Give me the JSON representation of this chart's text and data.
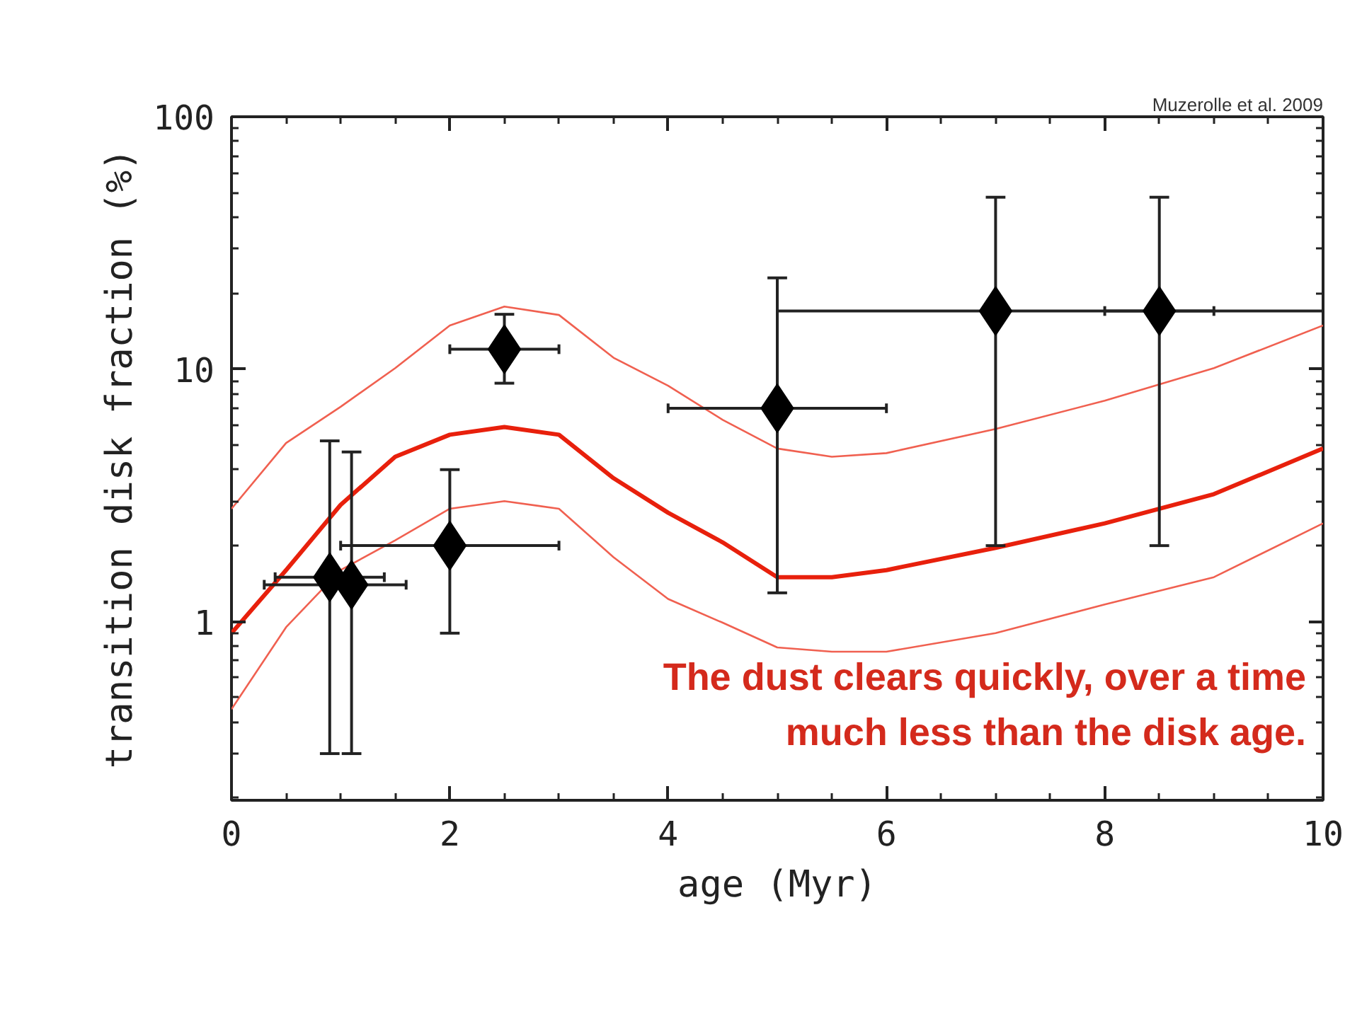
{
  "chart_data": {
    "type": "line",
    "xlabel": "age (Myr)",
    "ylabel": "transition disk fraction (%)",
    "log": "y",
    "xlim": [
      0,
      10
    ],
    "ylim": [
      0.196,
      100
    ],
    "xticks": [
      0,
      2,
      4,
      6,
      8,
      10
    ],
    "yticks": [
      1,
      10,
      100
    ],
    "grid": false,
    "annotations": [
      "Muzerolle et al. 2009",
      "The dust clears quickly, over a time\nmuch less than the disk age."
    ],
    "series": [
      {
        "color": "#e8200c",
        "x": [
          0,
          0.5,
          1,
          1.5,
          2,
          2.5,
          3,
          3.5,
          4,
          4.5,
          5,
          5.5,
          6,
          7,
          8,
          9,
          10
        ],
        "values": [
          0.9,
          1.6,
          2.9,
          4.5,
          5.5,
          5.9,
          5.5,
          3.7,
          2.7,
          2.06,
          1.5,
          1.5,
          1.6,
          1.96,
          2.45,
          3.2,
          4.85
        ]
      },
      {
        "color": "#f06050",
        "x": [
          0,
          0.5,
          1,
          1.5,
          2,
          2.5,
          3,
          3.5,
          4,
          4.5,
          5,
          5.5,
          6,
          7,
          8,
          9,
          10
        ],
        "values": [
          2.8,
          5.1,
          7.1,
          10.1,
          14.9,
          17.7,
          16.4,
          11.1,
          8.6,
          6.3,
          4.85,
          4.5,
          4.65,
          5.8,
          7.5,
          10.1,
          14.9
        ]
      },
      {
        "color": "#f06050",
        "x": [
          0,
          0.5,
          1,
          1.5,
          2,
          2.5,
          3,
          3.5,
          4,
          4.5,
          5,
          5.5,
          6,
          7,
          8,
          9,
          10
        ],
        "values": [
          0.45,
          0.95,
          1.6,
          2.1,
          2.8,
          3.0,
          2.8,
          1.8,
          1.23,
          0.99,
          0.79,
          0.76,
          0.76,
          0.9,
          1.17,
          1.5,
          2.45
        ]
      },
      {
        "type": "scatter",
        "color": "#000000",
        "marker": "diamond",
        "x": [
          0.9,
          1.1,
          2,
          2.5,
          5,
          7,
          8.5
        ],
        "values": [
          1.5,
          1.4,
          2.0,
          12,
          7,
          17,
          17
        ],
        "errors": [
          [
            0.3,
            5.2
          ],
          [
            0.3,
            4.7
          ],
          [
            0.9,
            4.0
          ],
          [
            8.8,
            16.5
          ],
          [
            1.3,
            23
          ],
          [
            2,
            48
          ],
          [
            2,
            48
          ]
        ],
        "xerrors": [
          [
            0.4,
            1.4
          ],
          [
            0.3,
            1.6
          ],
          [
            1.0,
            3.0
          ],
          [
            2.0,
            3.0
          ],
          [
            4.0,
            6.0
          ],
          [
            5,
            10
          ],
          [
            8,
            9
          ]
        ]
      }
    ]
  }
}
